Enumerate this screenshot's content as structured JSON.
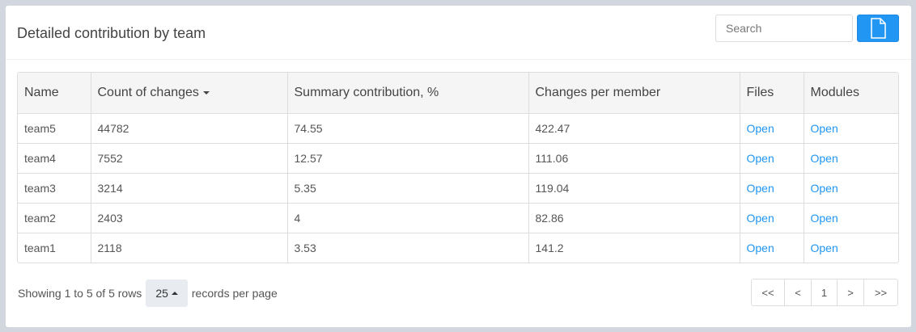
{
  "panel": {
    "title": "Detailed contribution by team"
  },
  "search": {
    "placeholder": "Search"
  },
  "export_button": {
    "icon": "file-icon"
  },
  "table": {
    "headers": {
      "name": "Name",
      "count": "Count of changes",
      "summary": "Summary contribution, %",
      "per_member": "Changes per member",
      "files": "Files",
      "modules": "Modules"
    },
    "sort": {
      "column": "count",
      "direction": "descending"
    },
    "rows": [
      {
        "name": "team5",
        "count": "44782",
        "summary": "74.55",
        "per_member": "422.47",
        "files": "Open",
        "modules": "Open"
      },
      {
        "name": "team4",
        "count": "7552",
        "summary": "12.57",
        "per_member": "111.06",
        "files": "Open",
        "modules": "Open"
      },
      {
        "name": "team3",
        "count": "3214",
        "summary": "5.35",
        "per_member": "119.04",
        "files": "Open",
        "modules": "Open"
      },
      {
        "name": "team2",
        "count": "2403",
        "summary": "4",
        "per_member": "82.86",
        "files": "Open",
        "modules": "Open"
      },
      {
        "name": "team1",
        "count": "2118",
        "summary": "3.53",
        "per_member": "141.2",
        "files": "Open",
        "modules": "Open"
      }
    ]
  },
  "footer": {
    "showing_text": "Showing 1 to 5 of 5 rows",
    "page_size": "25",
    "records_per_page": "records per page"
  },
  "pagination": {
    "first": "<<",
    "prev": "<",
    "current": "1",
    "next": ">",
    "last": ">>"
  },
  "colors": {
    "accent": "#2196f3",
    "background": "#d2d6de",
    "header_bg": "#f5f5f5"
  }
}
